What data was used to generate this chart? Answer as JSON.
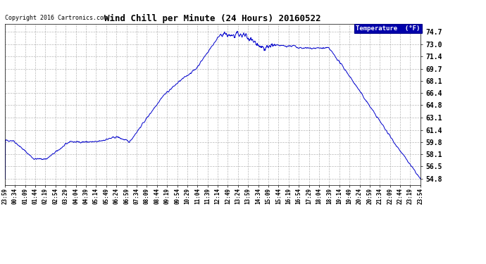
{
  "title": "Wind Chill per Minute (24 Hours) 20160522",
  "copyright": "Copyright 2016 Cartronics.com",
  "legend_label": "Temperature  (°F)",
  "line_color": "#0000cc",
  "background_color": "#ffffff",
  "plot_bg_color": "#ffffff",
  "grid_color": "#888888",
  "yticks": [
    54.8,
    56.5,
    58.1,
    59.8,
    61.4,
    63.1,
    64.8,
    66.4,
    68.1,
    69.7,
    71.4,
    73.0,
    74.7
  ],
  "ylim": [
    54.0,
    75.8
  ],
  "xtick_labels": [
    "23:59",
    "00:34",
    "01:09",
    "01:44",
    "02:19",
    "02:54",
    "03:29",
    "04:04",
    "04:39",
    "05:14",
    "05:49",
    "06:24",
    "06:59",
    "07:34",
    "08:09",
    "08:44",
    "09:19",
    "09:54",
    "10:29",
    "11:04",
    "11:39",
    "12:14",
    "12:49",
    "13:24",
    "13:59",
    "14:34",
    "15:09",
    "15:44",
    "16:19",
    "16:54",
    "17:29",
    "18:04",
    "18:39",
    "19:14",
    "19:49",
    "20:24",
    "20:59",
    "21:34",
    "22:09",
    "22:44",
    "23:19",
    "23:54"
  ],
  "legend_bg": "#0000aa",
  "legend_text_color": "#ffffff"
}
